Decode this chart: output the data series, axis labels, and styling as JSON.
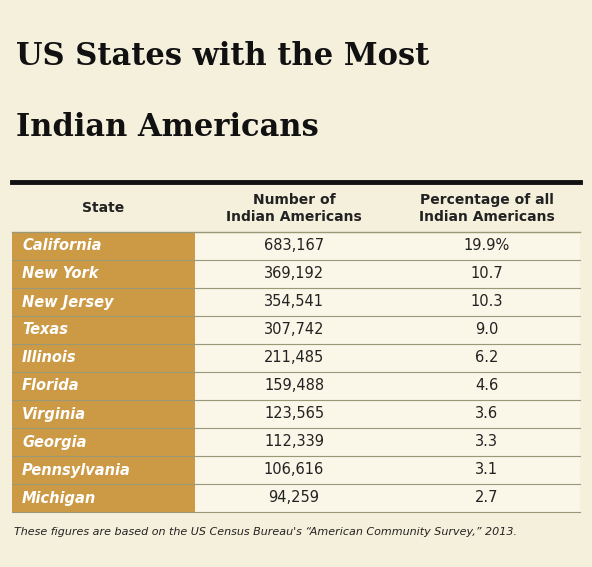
{
  "title_line1": "US States with the Most",
  "title_line2": "Indian Americans",
  "col_headers": [
    "State",
    "Number of\nIndian Americans",
    "Percentage of all\nIndian Americans"
  ],
  "states": [
    "California",
    "New York",
    "New Jersey",
    "Texas",
    "Illinois",
    "Florida",
    "Virginia",
    "Georgia",
    "Pennsylvania",
    "Michigan"
  ],
  "numbers": [
    "683,167",
    "369,192",
    "354,541",
    "307,742",
    "211,485",
    "159,488",
    "123,565",
    "112,339",
    "106,616",
    "94,259"
  ],
  "percentages": [
    "19.9%",
    "10.7",
    "10.3",
    "9.0",
    "6.2",
    "4.6",
    "3.6",
    "3.3",
    "3.1",
    "2.7"
  ],
  "bg_color": "#f5f0dc",
  "state_cell_color": "#cc9944",
  "data_cell_color": "#faf6e8",
  "row_divider_color": "#999977",
  "thick_line_color": "#111111",
  "title_color": "#111111",
  "state_text_color": "#ffffff",
  "data_text_color": "#222222",
  "header_text_color": "#222222",
  "footer_text": "These figures are based on the US Census Bureau's “American Community Survey,” 2013.",
  "title_fontsize": 22,
  "header_fontsize": 10,
  "data_fontsize": 10.5,
  "state_fontsize": 10.5,
  "footer_fontsize": 8
}
